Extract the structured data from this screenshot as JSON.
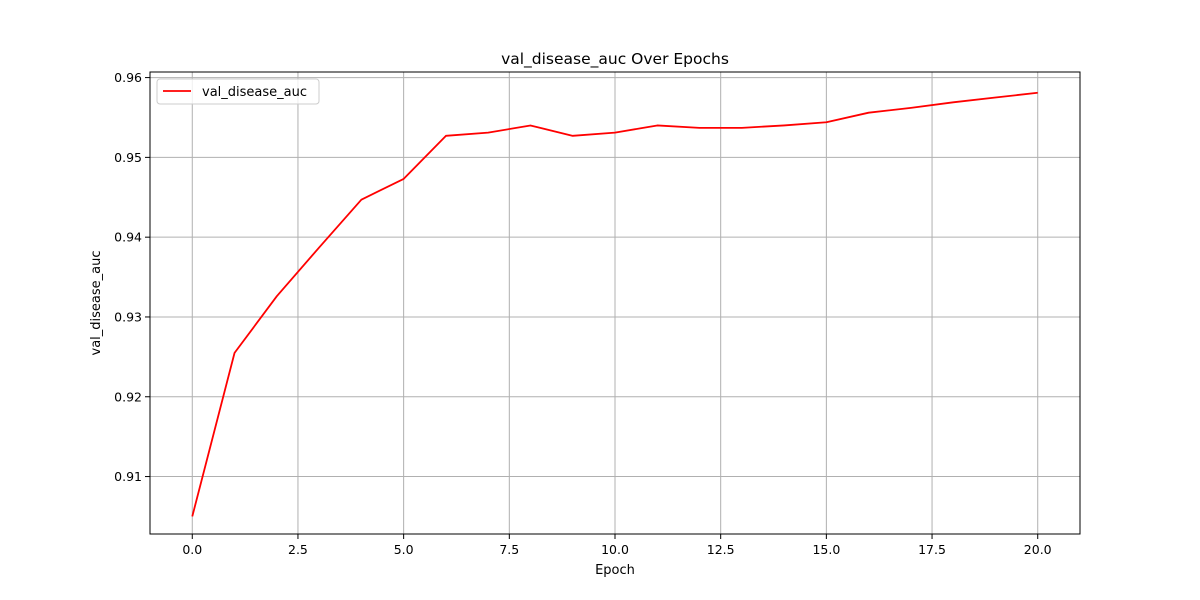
{
  "chart_data": {
    "type": "line",
    "title": "val_disease_auc Over Epochs",
    "xlabel": "Epoch",
    "ylabel": "val_disease_auc",
    "xlim": [
      -1,
      21
    ],
    "ylim": [
      0.9028,
      0.9607
    ],
    "x_ticks": [
      0.0,
      2.5,
      5.0,
      7.5,
      10.0,
      12.5,
      15.0,
      17.5,
      20.0
    ],
    "x_tick_labels": [
      "0.0",
      "2.5",
      "5.0",
      "7.5",
      "10.0",
      "12.5",
      "15.0",
      "17.5",
      "20.0"
    ],
    "y_ticks": [
      0.91,
      0.92,
      0.93,
      0.94,
      0.95,
      0.96
    ],
    "y_tick_labels": [
      "0.91",
      "0.92",
      "0.93",
      "0.94",
      "0.95",
      "0.96"
    ],
    "grid": true,
    "legend_position": "top-left",
    "series": [
      {
        "name": "val_disease_auc",
        "color": "#ff0000",
        "x": [
          0,
          1,
          2,
          3,
          4,
          5,
          6,
          7,
          8,
          9,
          10,
          11,
          12,
          13,
          14,
          15,
          16,
          17,
          18,
          19,
          20
        ],
        "values": [
          0.905,
          0.9255,
          0.9326,
          0.9387,
          0.9447,
          0.9473,
          0.9527,
          0.9531,
          0.954,
          0.9527,
          0.9531,
          0.954,
          0.9537,
          0.9537,
          0.954,
          0.9544,
          0.9556,
          0.9562,
          0.9569,
          0.9575,
          0.9581
        ]
      }
    ]
  }
}
